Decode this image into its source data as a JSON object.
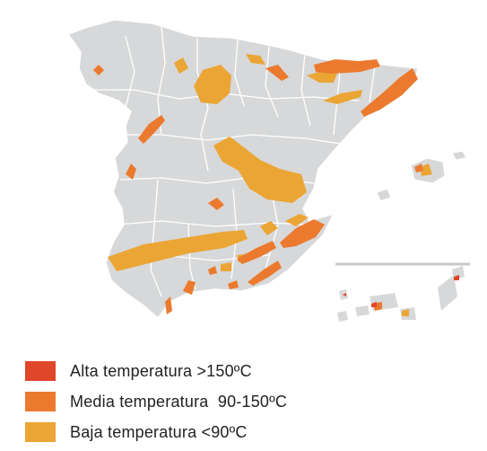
{
  "legend": [
    {
      "label": "Alta temperatura >150ºC",
      "color": "#E0462A"
    },
    {
      "label": "Media temperatura  90-150ºC",
      "color": "#EB7A2E"
    },
    {
      "label": "Baja temperatura <90ºC",
      "color": "#EBA534"
    }
  ],
  "map": {
    "land_color": "#D7D8D9",
    "border_color": "#FFFFFF",
    "separator_color": "#C8C9CA"
  }
}
